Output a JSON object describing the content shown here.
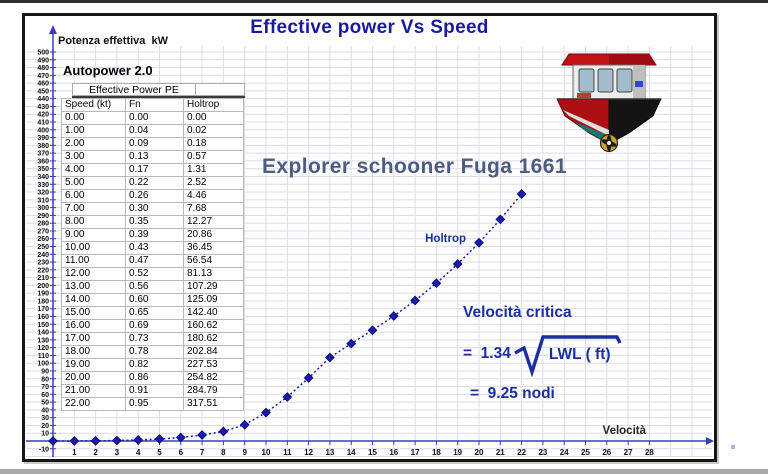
{
  "chart": {
    "title": "Effective power Vs Speed",
    "y_axis_title": "Potenza effettiva  kW",
    "x_axis_title": "Velocità",
    "series_label": "Holtrop"
  },
  "annotations": {
    "model_name": "Explorer schooner Fuga 1661",
    "critical_speed_heading": "Velocità critica",
    "formula_prefix": "=  1.34",
    "formula_radicand": "LWL ( ft)",
    "formula_result": "=  9.25 nodi"
  },
  "table": {
    "title": "Autopower 2.0",
    "subtitle": "Effective Power PE",
    "columns": [
      "Speed (kt)",
      "Fn",
      "Holtrop"
    ],
    "rows": [
      [
        "0.00",
        "0.00",
        "0.00"
      ],
      [
        "1.00",
        "0.04",
        "0.02"
      ],
      [
        "2.00",
        "0.09",
        "0.18"
      ],
      [
        "3.00",
        "0.13",
        "0.57"
      ],
      [
        "4.00",
        "0.17",
        "1.31"
      ],
      [
        "5.00",
        "0.22",
        "2.52"
      ],
      [
        "6.00",
        "0.26",
        "4.46"
      ],
      [
        "7.00",
        "0.30",
        "7.68"
      ],
      [
        "8.00",
        "0.35",
        "12.27"
      ],
      [
        "9.00",
        "0.39",
        "20.86"
      ],
      [
        "10.00",
        "0.43",
        "36.45"
      ],
      [
        "11.00",
        "0.47",
        "56.54"
      ],
      [
        "12.00",
        "0.52",
        "81.13"
      ],
      [
        "13.00",
        "0.56",
        "107.29"
      ],
      [
        "14.00",
        "0.60",
        "125.09"
      ],
      [
        "15.00",
        "0.65",
        "142.40"
      ],
      [
        "16.00",
        "0.69",
        "160.62"
      ],
      [
        "17.00",
        "0.73",
        "180.62"
      ],
      [
        "18.00",
        "0.78",
        "202.84"
      ],
      [
        "19.00",
        "0.82",
        "227.53"
      ],
      [
        "20.00",
        "0.86",
        "254.82"
      ],
      [
        "21.00",
        "0.91",
        "284.79"
      ],
      [
        "22.00",
        "0.95",
        "317.51"
      ]
    ]
  },
  "chart_data": {
    "type": "line",
    "title": "Effective power Vs Speed",
    "xlabel": "Velocità",
    "ylabel": "Potenza effettiva kW",
    "x": [
      0,
      1,
      2,
      3,
      4,
      5,
      6,
      7,
      8,
      9,
      10,
      11,
      12,
      13,
      14,
      15,
      16,
      17,
      18,
      19,
      20,
      21,
      22
    ],
    "series": [
      {
        "name": "Holtrop",
        "values": [
          0.0,
          0.02,
          0.18,
          0.57,
          1.31,
          2.52,
          4.46,
          7.68,
          12.27,
          20.86,
          36.45,
          56.54,
          81.13,
          107.29,
          125.09,
          142.4,
          160.62,
          180.62,
          202.84,
          227.53,
          254.82,
          284.79,
          317.51
        ]
      }
    ],
    "xlim": [
      0,
      29
    ],
    "ylim": [
      -10,
      500
    ],
    "x_tick_start": 1,
    "x_tick_end": 28,
    "x_tick_step": 1,
    "y_tick_step": 10,
    "y_label_top": 500,
    "y_label_bottom": 10,
    "y_label_extra": -10,
    "grid": true,
    "legend_position": "inline-curve-label",
    "marker": "diamond",
    "line_style": "dotted"
  },
  "colors": {
    "title": "#1a1a9c",
    "axis": "#3a3ac8",
    "curve": "#1c1caa",
    "curve_stroke": "#00007d",
    "grid": "#dcdce8",
    "model_text": "#4d5c80",
    "annotation": "#1b2f9e",
    "tick_text": "#111111"
  }
}
